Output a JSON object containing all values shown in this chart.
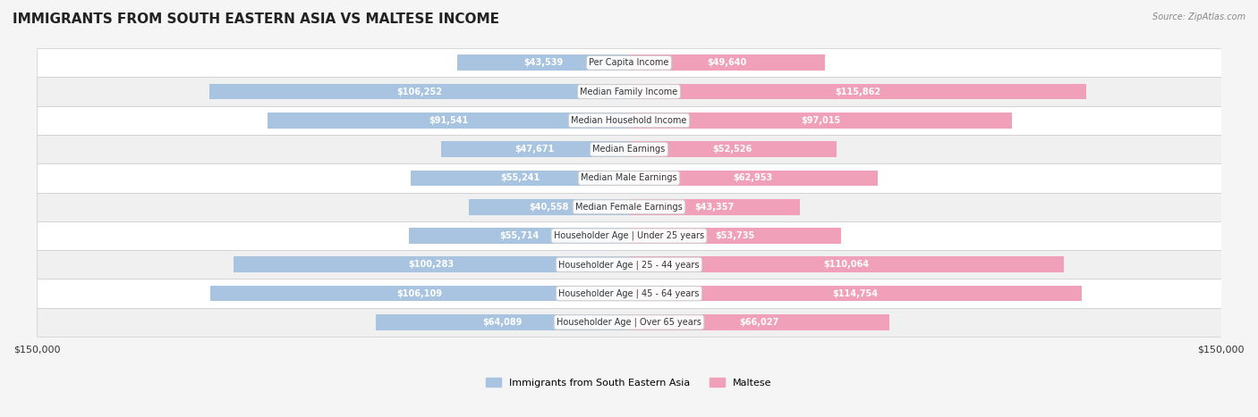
{
  "title": "IMMIGRANTS FROM SOUTH EASTERN ASIA VS MALTESE INCOME",
  "source": "Source: ZipAtlas.com",
  "categories": [
    "Per Capita Income",
    "Median Family Income",
    "Median Household Income",
    "Median Earnings",
    "Median Male Earnings",
    "Median Female Earnings",
    "Householder Age | Under 25 years",
    "Householder Age | 25 - 44 years",
    "Householder Age | 45 - 64 years",
    "Householder Age | Over 65 years"
  ],
  "left_values": [
    43539,
    106252,
    91541,
    47671,
    55241,
    40558,
    55714,
    100283,
    106109,
    64089
  ],
  "right_values": [
    49640,
    115862,
    97015,
    52526,
    62953,
    43357,
    53735,
    110064,
    114754,
    66027
  ],
  "left_labels": [
    "$43,539",
    "$106,252",
    "$91,541",
    "$47,671",
    "$55,241",
    "$40,558",
    "$55,714",
    "$100,283",
    "$106,109",
    "$64,089"
  ],
  "right_labels": [
    "$49,640",
    "$115,862",
    "$97,015",
    "$52,526",
    "$62,953",
    "$43,357",
    "$53,735",
    "$110,064",
    "$114,754",
    "$66,027"
  ],
  "left_color": "#a8c4e0",
  "right_color": "#f0a0b8",
  "left_color_dark": "#7bafd4",
  "right_color_dark": "#e87aa0",
  "left_label_bg": "#7bafd4",
  "right_label_bg": "#e87aa0",
  "legend_left": "Immigrants from South Eastern Asia",
  "legend_right": "Maltese",
  "max_value": 150000,
  "bg_color": "#f5f5f5",
  "row_bg_color": "#ffffff",
  "row_alt_bg_color": "#f0f0f0"
}
